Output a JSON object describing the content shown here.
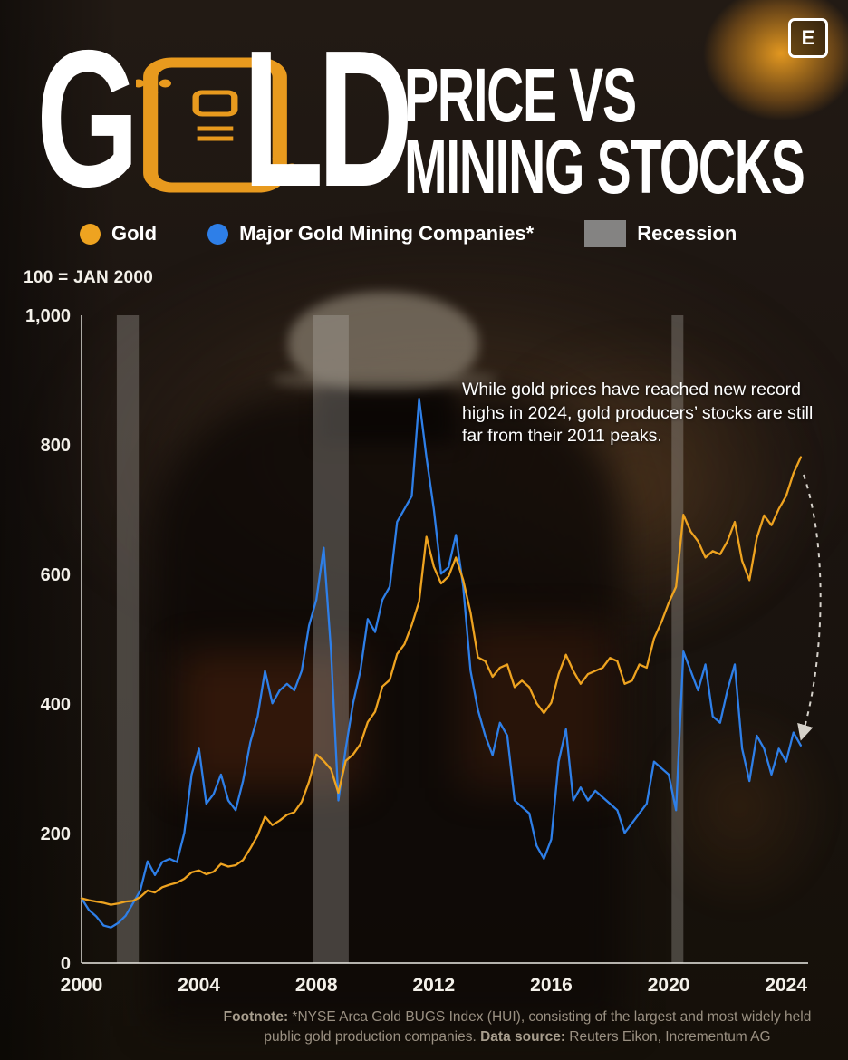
{
  "header": {
    "logo_letter": "E",
    "title_g": "G",
    "title_ld": "LD",
    "title_line1": "PRICE VS",
    "title_line2": "MINING STOCKS",
    "accent_color": "#E89A1E"
  },
  "legend": {
    "items": [
      {
        "label": "Gold",
        "color": "#EEA320",
        "swatch": "circle"
      },
      {
        "label": "Major Gold Mining Companies*",
        "color": "#2E7FE8",
        "swatch": "circle"
      },
      {
        "label": "Recession",
        "color": "#8F8F8F",
        "swatch": "rect"
      }
    ]
  },
  "chart_data": {
    "type": "line",
    "title": "Gold Price vs Mining Stocks",
    "index_note": "100 = JAN 2000",
    "x_start": 2000,
    "x_step": 0.25,
    "xlim": [
      2000,
      2024.75
    ],
    "ylim": [
      0,
      1000
    ],
    "grid": false,
    "legend_position": "top",
    "yticks": [
      {
        "value": 0,
        "label": "0"
      },
      {
        "value": 200,
        "label": "200"
      },
      {
        "value": 400,
        "label": "400"
      },
      {
        "value": 600,
        "label": "600"
      },
      {
        "value": 800,
        "label": "800"
      },
      {
        "value": 1000,
        "label": "1,000"
      }
    ],
    "xticks": [
      {
        "value": 2000,
        "label": "2000"
      },
      {
        "value": 2004,
        "label": "2004"
      },
      {
        "value": 2008,
        "label": "2008"
      },
      {
        "value": 2012,
        "label": "2012"
      },
      {
        "value": 2016,
        "label": "2016"
      },
      {
        "value": 2020,
        "label": "2020"
      },
      {
        "value": 2024,
        "label": "2024"
      }
    ],
    "recessions": [
      [
        2001.2,
        2001.95
      ],
      [
        2007.9,
        2009.1
      ],
      [
        2020.1,
        2020.5
      ]
    ],
    "series": [
      {
        "name": "Gold",
        "color": "#EEA320",
        "values": [
          100,
          97,
          95,
          93,
          90,
          92,
          95,
          96,
          102,
          112,
          109,
          117,
          121,
          124,
          130,
          140,
          143,
          137,
          141,
          153,
          149,
          151,
          159,
          177,
          197,
          226,
          213,
          220,
          229,
          233,
          249,
          280,
          322,
          312,
          299,
          263,
          312,
          322,
          338,
          372,
          388,
          427,
          437,
          477,
          492,
          522,
          558,
          658,
          612,
          586,
          597,
          626,
          591,
          541,
          472,
          466,
          442,
          456,
          461,
          426,
          436,
          426,
          401,
          386,
          402,
          446,
          476,
          451,
          431,
          446,
          451,
          456,
          471,
          466,
          431,
          436,
          461,
          456,
          501,
          526,
          556,
          581,
          692,
          666,
          651,
          626,
          636,
          631,
          651,
          681,
          621,
          591,
          656,
          691,
          676,
          701,
          721,
          756,
          781
        ]
      },
      {
        "name": "Major Gold Mining Companies*",
        "color": "#2E7FE8",
        "values": [
          100,
          82,
          72,
          58,
          55,
          62,
          73,
          92,
          112,
          157,
          136,
          156,
          161,
          156,
          201,
          291,
          331,
          246,
          261,
          291,
          251,
          236,
          281,
          341,
          381,
          451,
          401,
          421,
          431,
          421,
          451,
          521,
          561,
          641,
          481,
          251,
          331,
          401,
          451,
          531,
          511,
          561,
          581,
          681,
          701,
          721,
          871,
          781,
          701,
          601,
          611,
          661,
          581,
          451,
          391,
          351,
          321,
          371,
          351,
          251,
          241,
          231,
          181,
          161,
          191,
          311,
          361,
          251,
          271,
          251,
          266,
          256,
          246,
          236,
          201,
          216,
          231,
          246,
          311,
          301,
          291,
          236,
          481,
          451,
          421,
          461,
          381,
          371,
          421,
          461,
          331,
          281,
          351,
          331,
          291,
          331,
          311,
          356,
          336
        ]
      }
    ],
    "annotation": "While gold prices have reached new record highs in 2024, gold producers’ stocks are still far from their 2011 peaks."
  },
  "footer": {
    "footnote_label": "Footnote:",
    "footnote_text": " *NYSE Arca Gold BUGS Index (HUI), consisting of the largest and most widely held public gold production companies. ",
    "source_label": "Data source:",
    "source_text": " Reuters Eikon, Incrementum AG"
  }
}
